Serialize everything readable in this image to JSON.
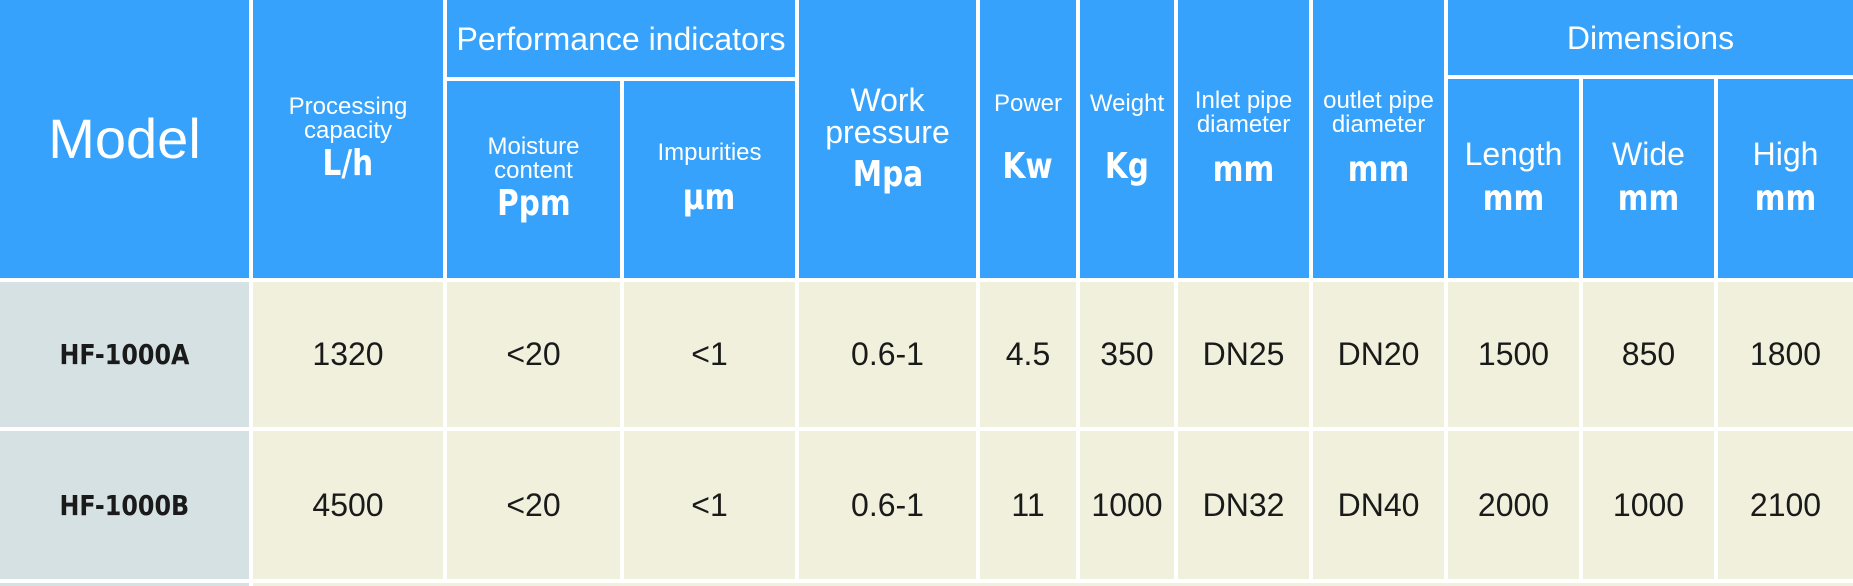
{
  "table": {
    "header": {
      "model": "Model",
      "processing": {
        "label_line1": "Processing",
        "label_line2": "capacity",
        "unit": "L/h"
      },
      "performance_group": "Performance indicators",
      "moisture": {
        "label_line1": "Moisture",
        "label_line2": "content",
        "unit": "Ppm"
      },
      "impurities": {
        "label": "Impurities",
        "unit": "μm"
      },
      "work_pressure": {
        "label_line1": "Work",
        "label_line2": "pressure",
        "unit": "Mpa"
      },
      "power": {
        "label": "Power",
        "unit": "Kw"
      },
      "weight": {
        "label": "Weight",
        "unit": "Kg"
      },
      "inlet": {
        "label_line1": "Inlet pipe",
        "label_line2": "diameter",
        "unit": "mm"
      },
      "outlet": {
        "label_line1": "outlet pipe",
        "label_line2": "diameter",
        "unit": "mm"
      },
      "dimensions_group": "Dimensions",
      "length": {
        "label": "Length",
        "unit": "mm"
      },
      "wide": {
        "label": "Wide",
        "unit": "mm"
      },
      "high": {
        "label": "High",
        "unit": "mm"
      }
    },
    "rows": [
      {
        "model": "HF-1000A",
        "capacity": "1320",
        "moisture": "<20",
        "impurities": "<1",
        "pressure": "0.6-1",
        "power": "4.5",
        "weight": "350",
        "inlet": "DN25",
        "outlet": "DN20",
        "length": "1500",
        "wide": "850",
        "high": "1800"
      },
      {
        "model": "HF-1000B",
        "capacity": "4500",
        "moisture": "<20",
        "impurities": "<1",
        "pressure": "0.6-1",
        "power": "11",
        "weight": "1000",
        "inlet": "DN32",
        "outlet": "DN40",
        "length": "2000",
        "wide": "1000",
        "high": "2100"
      }
    ],
    "colors": {
      "header_bg": "#36a2fb",
      "body_bg": "#f0f0dc",
      "model_bg": "#d6e1e3",
      "grid": "#ffffff"
    }
  }
}
